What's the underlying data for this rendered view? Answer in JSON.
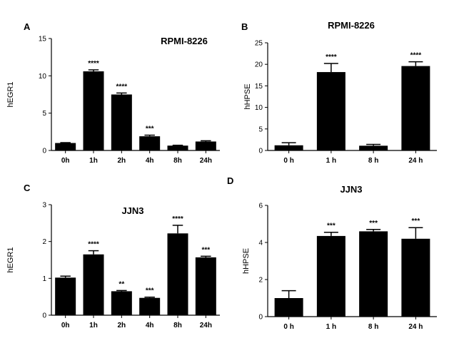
{
  "chart_data": [
    {
      "type": "bar",
      "panel": "A",
      "title": "RPMI-8226",
      "ylabel": "hEGR1",
      "xlabel": "",
      "ylim": [
        0,
        15
      ],
      "yticks": [
        0,
        5,
        10,
        15
      ],
      "categories": [
        "0h",
        "1h",
        "2h",
        "4h",
        "8h",
        "24h"
      ],
      "values": [
        1.0,
        10.6,
        7.5,
        1.9,
        0.65,
        1.2
      ],
      "errors": [
        0.05,
        0.2,
        0.2,
        0.15,
        0.05,
        0.1
      ],
      "significance": [
        "",
        "****",
        "****",
        "***",
        "",
        ""
      ],
      "color": "#000000"
    },
    {
      "type": "bar",
      "panel": "B",
      "title": "RPMI-8226",
      "ylabel": "hHPSE",
      "xlabel": "",
      "ylim": [
        0,
        25
      ],
      "yticks": [
        0,
        5,
        10,
        15,
        20,
        25
      ],
      "categories": [
        "0 h",
        "1 h",
        "8 h",
        "24 h"
      ],
      "values": [
        1.2,
        18.2,
        1.1,
        19.6
      ],
      "errors": [
        0.6,
        2.0,
        0.3,
        1.0
      ],
      "significance": [
        "",
        "****",
        "",
        "****"
      ],
      "color": "#000000"
    },
    {
      "type": "bar",
      "panel": "C",
      "title": "JJN3",
      "ylabel": "hEGR1",
      "xlabel": "",
      "ylim": [
        0,
        3
      ],
      "yticks": [
        0,
        1,
        2,
        3
      ],
      "categories": [
        "0h",
        "1h",
        "2h",
        "4h",
        "8h",
        "24h"
      ],
      "values": [
        1.02,
        1.65,
        0.65,
        0.47,
        2.22,
        1.57
      ],
      "errors": [
        0.04,
        0.1,
        0.02,
        0.02,
        0.22,
        0.03
      ],
      "significance": [
        "",
        "****",
        "**",
        "***",
        "****",
        "***"
      ],
      "color": "#000000"
    },
    {
      "type": "bar",
      "panel": "D",
      "title": "JJN3",
      "ylabel": "hHPSE",
      "xlabel": "",
      "ylim": [
        0,
        6
      ],
      "yticks": [
        0,
        2,
        4,
        6
      ],
      "categories": [
        "0 h",
        "1 h",
        "8 h",
        "24 h"
      ],
      "values": [
        1.0,
        4.35,
        4.6,
        4.2
      ],
      "errors": [
        0.4,
        0.2,
        0.1,
        0.6
      ],
      "significance": [
        "",
        "***",
        "***",
        "***"
      ],
      "color": "#000000"
    }
  ]
}
